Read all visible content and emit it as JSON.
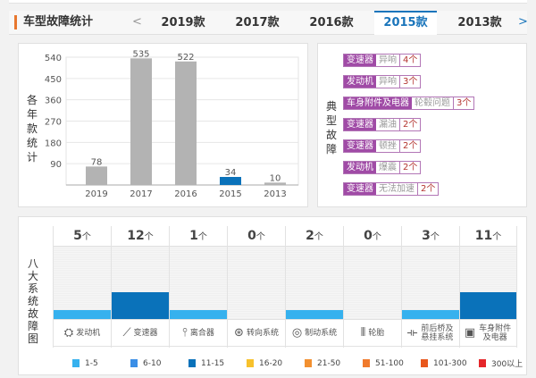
{
  "header": {
    "title": "车型故障统计",
    "prev": "<",
    "next": ">",
    "tabs": [
      {
        "label": "2019款"
      },
      {
        "label": "2017款"
      },
      {
        "label": "2016款"
      },
      {
        "label": "2015款",
        "active": true
      },
      {
        "label": "2013款"
      }
    ]
  },
  "chart_data": {
    "type": "bar",
    "ylabel": "各年款统计",
    "categories": [
      "2019",
      "2017",
      "2016",
      "2015",
      "2013"
    ],
    "values": [
      78,
      535,
      522,
      34,
      10
    ],
    "highlight": "2015",
    "yticks": [
      90,
      180,
      270,
      360,
      450,
      540
    ],
    "ylim": [
      0,
      540
    ],
    "bar_color": "#b3b3b3",
    "highlight_color": "#0a72ba",
    "grid": true
  },
  "faults": {
    "label": "典型故障",
    "items": [
      {
        "system": "变速器",
        "issue": "异响",
        "count": "4个"
      },
      {
        "system": "发动机",
        "issue": "异响",
        "count": "3个"
      },
      {
        "system": "车身附件及电器",
        "issue": "轮毂问题",
        "count": "3个"
      },
      {
        "system": "变速器",
        "issue": "漏油",
        "count": "2个"
      },
      {
        "system": "变速器",
        "issue": "顿挫",
        "count": "2个"
      },
      {
        "system": "发动机",
        "issue": "爆震",
        "count": "2个"
      },
      {
        "system": "变速器",
        "issue": "无法加速",
        "count": "2个"
      }
    ]
  },
  "systems": {
    "label": "八大系统故障图",
    "unit": "个",
    "items": [
      {
        "name": "发动机",
        "count": "5",
        "value": 5,
        "icon": "engine-icon",
        "glyph": "⛭"
      },
      {
        "name": "变速器",
        "count": "12",
        "value": 12,
        "icon": "gear-shift-icon",
        "glyph": "⟋"
      },
      {
        "name": "离合器",
        "count": "1",
        "value": 1,
        "icon": "clutch-pedal-icon",
        "glyph": "⫯"
      },
      {
        "name": "转向系统",
        "count": "0",
        "value": 0,
        "icon": "steering-wheel-icon",
        "glyph": "⊛"
      },
      {
        "name": "制动系统",
        "count": "2",
        "value": 2,
        "icon": "brake-disc-icon",
        "glyph": "◎"
      },
      {
        "name": "轮胎",
        "count": "0",
        "value": 0,
        "icon": "tire-icon",
        "glyph": "⦀"
      },
      {
        "name": "前后桥及悬挂系统",
        "count": "3",
        "value": 3,
        "icon": "suspension-icon",
        "glyph": "⟛"
      },
      {
        "name": "车身附件及电器",
        "count": "11",
        "value": 11,
        "icon": "battery-icon",
        "glyph": "▣"
      }
    ]
  },
  "legend": [
    {
      "label": "1-5",
      "color": "#36b1ee",
      "max": 5
    },
    {
      "label": "6-10",
      "color": "#3a8ee6",
      "max": 10
    },
    {
      "label": "11-15",
      "color": "#0a72ba",
      "max": 15
    },
    {
      "label": "16-20",
      "color": "#f7c12c",
      "max": 20
    },
    {
      "label": "21-50",
      "color": "#f29030",
      "max": 50
    },
    {
      "label": "51-100",
      "color": "#f07a2c",
      "max": 100
    },
    {
      "label": "101-300",
      "color": "#e8571c",
      "max": 300
    },
    {
      "label": "300以上",
      "color": "#e5262a",
      "max": 99999
    }
  ]
}
